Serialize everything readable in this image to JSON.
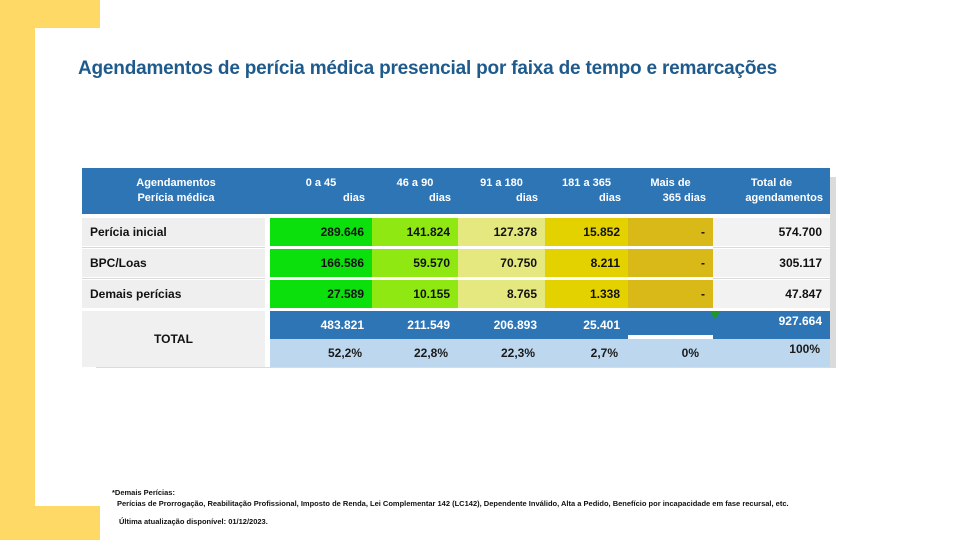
{
  "page": {
    "title": "Agendamentos de perícia médica presencial por faixa de tempo e remarcações"
  },
  "chart_data": {
    "type": "table",
    "title": "Agendamentos de perícia médica presencial por faixa de tempo e remarcações",
    "columns": [
      "Agendamentos Perícia médica",
      "0 a 45 dias",
      "46 a 90 dias",
      "91 a 180 dias",
      "181 a 365 dias",
      "Mais de 365 dias",
      "Total de agendamentos"
    ],
    "rows": [
      [
        "Perícia inicial",
        "289.646",
        "141.824",
        "127.378",
        "15.852",
        "-",
        "574.700"
      ],
      [
        "BPC/Loas",
        "166.586",
        "59.570",
        "70.750",
        "8.211",
        "-",
        "305.117"
      ],
      [
        "Demais perícias",
        "27.589",
        "10.155",
        "8.765",
        "1.338",
        "-",
        "47.847"
      ]
    ],
    "total_row": [
      "TOTAL",
      "483.821",
      "211.549",
      "206.893",
      "25.401",
      "",
      "927.664"
    ],
    "total_percent_row": [
      "52,2%",
      "22,8%",
      "22,3%",
      "2,7%",
      "0%",
      "100%"
    ]
  },
  "table": {
    "corner": {
      "l1": "Agendamentos",
      "l2": "Perícia médica"
    },
    "cols": [
      {
        "l1": "0 a 45",
        "l2": "dias"
      },
      {
        "l1": "46 a 90",
        "l2": "dias"
      },
      {
        "l1": "91 a 180",
        "l2": "dias"
      },
      {
        "l1": "181 a 365",
        "l2": "dias"
      },
      {
        "l1": "Mais de",
        "l2": "365 dias"
      },
      {
        "l1": "Total de",
        "l2": "agendamentos"
      }
    ]
  },
  "footnote": {
    "line1": "*Demais Perícias:",
    "line2": "Perícias de Prorrogação, Reabilitação Profissional, Imposto de Renda, Lei Complementar 142 (LC142), Dependente Inválido, Alta a Pedido, Benefício por incapacidade em fase recursal, etc.",
    "line3": "Última atualização disponível:  01/12/2023."
  },
  "colors": {
    "accent_yellow": "#FFD966",
    "title_blue": "#1F5A8D",
    "header_bg": "#2E75B6",
    "total_values_bg": "#2E75B6",
    "total_percent_bg": "#BDD7EE",
    "band_0_45": "#0CE00C",
    "band_46_90": "#90E813",
    "band_91_180": "#E4E87E",
    "band_181_365": "#E3D200",
    "band_mais_365": "#D9B918",
    "total_col_bg": "#F2F2F2",
    "flag_green": "#1C9C1C"
  }
}
